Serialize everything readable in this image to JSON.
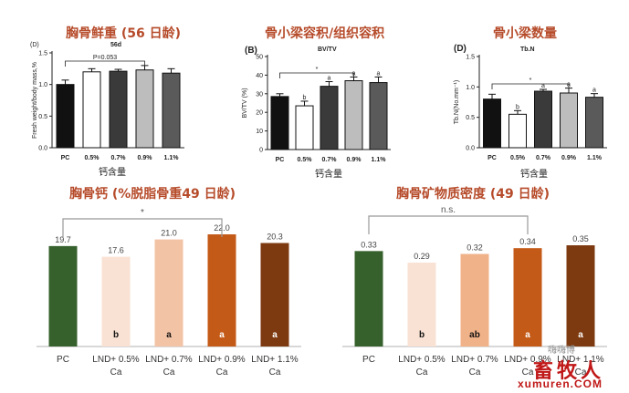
{
  "titles": {
    "p1": "胸骨鲜重 (56 日龄)",
    "p2": "骨小梁容积/组织容积",
    "p3": "骨小梁数量",
    "p4": "胸骨钙 (%脱脂骨重49 日龄)",
    "p5": "胸骨矿物质密度 (49 日龄)"
  },
  "labels": {
    "p1_panel": "(D)",
    "p1_sub": "56d",
    "p1_caption": "钙含量",
    "p2_panel": "(B)",
    "p2_sub": "BV/TV",
    "p2_caption": "钙含量",
    "p3_panel": "(D)",
    "p3_sub": "Tb.N",
    "p3_caption": "钙含量"
  },
  "watermark": {
    "line1": "嗨嗨博",
    "line2": "畜牧人",
    "line3": "xumuren.COM"
  },
  "chart_data": [
    {
      "id": "p1",
      "type": "bar",
      "ylabel": "Fresh weight/body mass,%",
      "categories": [
        "PC",
        "0.5%",
        "0.7%",
        "0.9%",
        "1.1%"
      ],
      "values": [
        1.0,
        1.2,
        1.21,
        1.23,
        1.18
      ],
      "errors": [
        0.07,
        0.05,
        0.03,
        0.07,
        0.07
      ],
      "ylim": [
        0.0,
        1.5
      ],
      "yticks": [
        "0.0",
        "0.5",
        "1.0",
        "1.5"
      ],
      "colors": [
        "#111111",
        "#ffffff",
        "#3a3a3a",
        "#bdbdbd",
        "#5a5a5a"
      ],
      "annotation": "P=0.053"
    },
    {
      "id": "p2",
      "type": "bar",
      "ylabel": "BV/TV (%)",
      "categories": [
        "PC",
        "0.5%",
        "0.7%",
        "0.9%",
        "1.1%"
      ],
      "values": [
        28.5,
        23.5,
        34.0,
        37.0,
        36.0
      ],
      "errors": [
        1.5,
        2.5,
        2.5,
        2.0,
        3.0
      ],
      "letters": [
        "",
        "b",
        "a",
        "a",
        "a"
      ],
      "ylim": [
        0,
        50
      ],
      "yticks": [
        "0",
        "10",
        "20",
        "30",
        "40",
        "50"
      ],
      "colors": [
        "#111111",
        "#ffffff",
        "#3a3a3a",
        "#bdbdbd",
        "#5a5a5a"
      ],
      "annotation": "*"
    },
    {
      "id": "p3",
      "type": "bar",
      "ylabel": "Tb.N(No.mm⁻¹)",
      "categories": [
        "PC",
        "0.5%",
        "0.7%",
        "0.9%",
        "1.1%"
      ],
      "values": [
        0.8,
        0.55,
        0.93,
        0.9,
        0.83
      ],
      "errors": [
        0.08,
        0.06,
        0.03,
        0.08,
        0.06
      ],
      "letters": [
        "",
        "b",
        "a",
        "a",
        "a"
      ],
      "ylim": [
        0.0,
        1.5
      ],
      "yticks": [
        "0.0",
        "0.5",
        "1.0",
        "1.5"
      ],
      "colors": [
        "#111111",
        "#ffffff",
        "#3a3a3a",
        "#bdbdbd",
        "#5a5a5a"
      ],
      "annotation": "*"
    },
    {
      "id": "p4",
      "type": "bar",
      "categories": [
        "PC",
        "LND+ 0.5% Ca",
        "LND+ 0.7% Ca",
        "LND+ 0.9% Ca",
        "LND+ 1.1% Ca"
      ],
      "values": [
        19.7,
        17.6,
        21.0,
        22.0,
        20.3
      ],
      "value_labels": [
        "19.7",
        "17.6",
        "21.0",
        "22.0",
        "20.3"
      ],
      "letters": [
        "",
        "b",
        "a",
        "a",
        "a"
      ],
      "ylim": [
        0,
        22
      ],
      "colors": [
        "#36612c",
        "#f9e2d3",
        "#f3c3a5",
        "#c45a17",
        "#7d3a10"
      ],
      "annotation": "*"
    },
    {
      "id": "p5",
      "type": "bar",
      "categories": [
        "PC",
        "LND+ 0.5% Ca",
        "LND+ 0.7% Ca",
        "LND+ 0.9% Ca",
        "LND+ 1.1% Ca"
      ],
      "values": [
        0.33,
        0.29,
        0.32,
        0.34,
        0.35
      ],
      "value_labels": [
        "0.33",
        "0.29",
        "0.32",
        "0.34",
        "0.35"
      ],
      "letters": [
        "",
        "b",
        "ab",
        "a",
        "a"
      ],
      "ylim": [
        0,
        0.35
      ],
      "colors": [
        "#36612c",
        "#f9e2d3",
        "#f0b289",
        "#c45a17",
        "#7d3a10"
      ],
      "annotation": "n.s."
    }
  ]
}
